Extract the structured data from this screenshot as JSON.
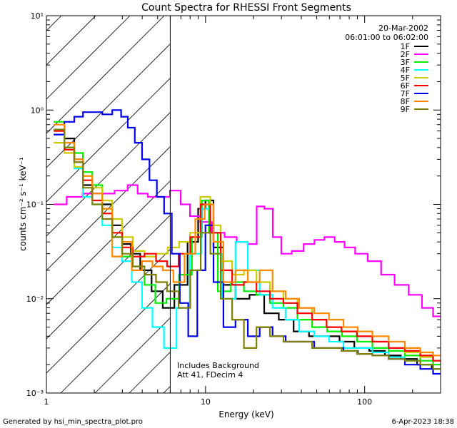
{
  "chart_data": {
    "type": "line",
    "title": "Count Spectra for RHESSI Front Segments",
    "xlabel": "Energy (keV)",
    "ylabel": "counts cm⁻² s⁻¹ keV⁻¹",
    "x_scale": "log",
    "y_scale": "log",
    "xlim": [
      1,
      300
    ],
    "ylim": [
      0.001,
      10
    ],
    "x_tick_labels": [
      {
        "value": 1,
        "label": "1"
      },
      {
        "value": 10,
        "label": "10"
      },
      {
        "value": 100,
        "label": "100"
      }
    ],
    "y_tick_labels": [
      {
        "value": 10,
        "label": "10¹"
      },
      {
        "value": 1,
        "label": "10⁰"
      },
      {
        "value": 0.1,
        "label": "10⁻¹"
      },
      {
        "value": 0.01,
        "label": "10⁻²"
      },
      {
        "value": 0.001,
        "label": "10⁻³"
      }
    ],
    "date": "20-Mar-2002",
    "time_range": "06:01:00 to 06:02:00",
    "annotation": [
      "Includes Background",
      "Att 41, FDecim 4"
    ],
    "hatched_region_xmax": 6,
    "legend_position": "top-right",
    "series": [
      {
        "name": "1F",
        "color": "#000000",
        "points": [
          [
            1.2,
            0.62
          ],
          [
            1.4,
            0.5
          ],
          [
            1.6,
            0.3
          ],
          [
            1.8,
            0.16
          ],
          [
            2.1,
            0.13
          ],
          [
            2.4,
            0.1
          ],
          [
            2.8,
            0.06
          ],
          [
            3.2,
            0.038
          ],
          [
            3.6,
            0.03
          ],
          [
            4.2,
            0.02
          ],
          [
            5,
            0.012
          ],
          [
            5.8,
            0.008
          ],
          [
            7,
            0.014
          ],
          [
            8.5,
            0.04
          ],
          [
            9.5,
            0.09
          ],
          [
            10.5,
            0.11
          ],
          [
            12,
            0.035
          ],
          [
            14,
            0.014
          ],
          [
            17,
            0.01
          ],
          [
            21,
            0.011
          ],
          [
            26,
            0.007
          ],
          [
            32,
            0.006
          ],
          [
            40,
            0.0045
          ],
          [
            50,
            0.004
          ],
          [
            62,
            0.004
          ],
          [
            78,
            0.0035
          ],
          [
            95,
            0.003
          ],
          [
            120,
            0.0028
          ],
          [
            150,
            0.0025
          ],
          [
            190,
            0.0023
          ],
          [
            240,
            0.002
          ],
          [
            290,
            0.0018
          ]
        ]
      },
      {
        "name": "2F",
        "color": "#ff00ff",
        "points": [
          [
            1.2,
            0.1
          ],
          [
            1.5,
            0.12
          ],
          [
            1.9,
            0.13
          ],
          [
            2.4,
            0.13
          ],
          [
            3,
            0.14
          ],
          [
            3.5,
            0.16
          ],
          [
            4,
            0.13
          ],
          [
            4.7,
            0.12
          ],
          [
            5.5,
            0.12
          ],
          [
            6.5,
            0.14
          ],
          [
            7.5,
            0.1
          ],
          [
            8.5,
            0.075
          ],
          [
            10,
            0.065
          ],
          [
            12,
            0.05
          ],
          [
            14.5,
            0.045
          ],
          [
            17,
            0.04
          ],
          [
            20,
            0.038
          ],
          [
            22,
            0.095
          ],
          [
            25,
            0.09
          ],
          [
            28,
            0.045
          ],
          [
            32,
            0.03
          ],
          [
            38,
            0.032
          ],
          [
            45,
            0.038
          ],
          [
            52,
            0.042
          ],
          [
            60,
            0.045
          ],
          [
            70,
            0.04
          ],
          [
            80,
            0.035
          ],
          [
            95,
            0.03
          ],
          [
            115,
            0.025
          ],
          [
            140,
            0.018
          ],
          [
            170,
            0.014
          ],
          [
            210,
            0.011
          ],
          [
            250,
            0.008
          ],
          [
            290,
            0.0065
          ]
        ]
      },
      {
        "name": "3F",
        "color": "#00ee00",
        "points": [
          [
            1.2,
            0.75
          ],
          [
            1.4,
            0.4
          ],
          [
            1.6,
            0.35
          ],
          [
            1.8,
            0.22
          ],
          [
            2.1,
            0.16
          ],
          [
            2.4,
            0.09
          ],
          [
            2.8,
            0.045
          ],
          [
            3.2,
            0.028
          ],
          [
            3.8,
            0.022
          ],
          [
            4.5,
            0.014
          ],
          [
            5.2,
            0.009
          ],
          [
            6.2,
            0.01
          ],
          [
            7.5,
            0.018
          ],
          [
            9,
            0.045
          ],
          [
            10,
            0.11
          ],
          [
            11,
            0.05
          ],
          [
            13,
            0.012
          ],
          [
            16,
            0.015
          ],
          [
            19,
            0.012
          ],
          [
            23,
            0.011
          ],
          [
            28,
            0.009
          ],
          [
            34,
            0.008
          ],
          [
            42,
            0.006
          ],
          [
            52,
            0.005
          ],
          [
            65,
            0.0045
          ],
          [
            80,
            0.004
          ],
          [
            100,
            0.0035
          ],
          [
            125,
            0.003
          ],
          [
            160,
            0.0028
          ],
          [
            200,
            0.0025
          ],
          [
            250,
            0.0022
          ],
          [
            290,
            0.002
          ]
        ]
      },
      {
        "name": "4F",
        "color": "#00ffff",
        "points": [
          [
            1.2,
            0.55
          ],
          [
            1.4,
            0.4
          ],
          [
            1.6,
            0.24
          ],
          [
            1.8,
            0.12
          ],
          [
            2.1,
            0.1
          ],
          [
            2.4,
            0.06
          ],
          [
            2.8,
            0.035
          ],
          [
            3.2,
            0.025
          ],
          [
            3.7,
            0.015
          ],
          [
            4.3,
            0.008
          ],
          [
            5,
            0.005
          ],
          [
            6,
            0.003
          ],
          [
            7.2,
            0.008
          ],
          [
            8.8,
            0.03
          ],
          [
            10,
            0.09
          ],
          [
            11.5,
            0.03
          ],
          [
            14,
            0.01
          ],
          [
            17,
            0.04
          ],
          [
            20,
            0.02
          ],
          [
            24,
            0.011
          ],
          [
            29,
            0.008
          ],
          [
            35,
            0.006
          ],
          [
            43,
            0.0045
          ],
          [
            54,
            0.004
          ],
          [
            66,
            0.0035
          ],
          [
            82,
            0.003
          ],
          [
            100,
            0.003
          ],
          [
            125,
            0.0027
          ],
          [
            160,
            0.0024
          ],
          [
            200,
            0.0022
          ],
          [
            250,
            0.002
          ],
          [
            290,
            0.0018
          ]
        ]
      },
      {
        "name": "5F",
        "color": "#cccc00",
        "points": [
          [
            1.2,
            0.45
          ],
          [
            1.4,
            0.35
          ],
          [
            1.6,
            0.25
          ],
          [
            1.8,
            0.2
          ],
          [
            2.1,
            0.15
          ],
          [
            2.4,
            0.11
          ],
          [
            2.8,
            0.07
          ],
          [
            3.2,
            0.045
          ],
          [
            3.8,
            0.032
          ],
          [
            4.5,
            0.028
          ],
          [
            5.3,
            0.03
          ],
          [
            6.3,
            0.035
          ],
          [
            7.4,
            0.04
          ],
          [
            8.6,
            0.05
          ],
          [
            10,
            0.12
          ],
          [
            11.5,
            0.06
          ],
          [
            13.5,
            0.025
          ],
          [
            16,
            0.018
          ],
          [
            19,
            0.02
          ],
          [
            23,
            0.015
          ],
          [
            28,
            0.012
          ],
          [
            34,
            0.01
          ],
          [
            42,
            0.008
          ],
          [
            52,
            0.006
          ],
          [
            64,
            0.005
          ],
          [
            80,
            0.0045
          ],
          [
            100,
            0.004
          ],
          [
            125,
            0.0035
          ],
          [
            160,
            0.003
          ],
          [
            200,
            0.0027
          ],
          [
            250,
            0.0024
          ],
          [
            290,
            0.0022
          ]
        ]
      },
      {
        "name": "6F",
        "color": "#ff0000",
        "points": [
          [
            1.2,
            0.6
          ],
          [
            1.4,
            0.38
          ],
          [
            1.6,
            0.28
          ],
          [
            1.8,
            0.18
          ],
          [
            2.1,
            0.11
          ],
          [
            2.4,
            0.08
          ],
          [
            2.8,
            0.05
          ],
          [
            3.2,
            0.035
          ],
          [
            3.8,
            0.028
          ],
          [
            4.5,
            0.03
          ],
          [
            5.3,
            0.025
          ],
          [
            6.2,
            0.022
          ],
          [
            7.4,
            0.03
          ],
          [
            8.7,
            0.045
          ],
          [
            10,
            0.1
          ],
          [
            11.5,
            0.05
          ],
          [
            13.5,
            0.02
          ],
          [
            16,
            0.014
          ],
          [
            19,
            0.015
          ],
          [
            23,
            0.012
          ],
          [
            28,
            0.01
          ],
          [
            34,
            0.009
          ],
          [
            42,
            0.007
          ],
          [
            52,
            0.006
          ],
          [
            64,
            0.005
          ],
          [
            80,
            0.0045
          ],
          [
            100,
            0.004
          ],
          [
            125,
            0.0035
          ],
          [
            160,
            0.003
          ],
          [
            200,
            0.0028
          ],
          [
            250,
            0.0025
          ],
          [
            290,
            0.0022
          ]
        ]
      },
      {
        "name": "7F",
        "color": "#0000ee",
        "points": [
          [
            1.2,
            0.55
          ],
          [
            1.4,
            0.75
          ],
          [
            1.6,
            0.85
          ],
          [
            1.8,
            0.95
          ],
          [
            2.1,
            0.95
          ],
          [
            2.4,
            0.9
          ],
          [
            2.8,
            1.0
          ],
          [
            3.1,
            0.85
          ],
          [
            3.4,
            0.65
          ],
          [
            3.8,
            0.45
          ],
          [
            4.2,
            0.3
          ],
          [
            4.7,
            0.18
          ],
          [
            5.2,
            0.12
          ],
          [
            5.8,
            0.08
          ],
          [
            6.5,
            0.03
          ],
          [
            7.3,
            0.009
          ],
          [
            8.3,
            0.004
          ],
          [
            9.5,
            0.02
          ],
          [
            10.5,
            0.06
          ],
          [
            12,
            0.015
          ],
          [
            14,
            0.005
          ],
          [
            17,
            0.006
          ],
          [
            20,
            0.004
          ],
          [
            24,
            0.005
          ],
          [
            29,
            0.004
          ],
          [
            35,
            0.0035
          ],
          [
            43,
            0.0035
          ],
          [
            54,
            0.003
          ],
          [
            66,
            0.003
          ],
          [
            82,
            0.0028
          ],
          [
            100,
            0.0026
          ],
          [
            125,
            0.0025
          ],
          [
            160,
            0.0023
          ],
          [
            200,
            0.002
          ],
          [
            250,
            0.0018
          ],
          [
            290,
            0.0016
          ]
        ]
      },
      {
        "name": "8F",
        "color": "#ff8800",
        "points": [
          [
            1.2,
            0.7
          ],
          [
            1.4,
            0.45
          ],
          [
            1.6,
            0.3
          ],
          [
            1.8,
            0.2
          ],
          [
            2.1,
            0.13
          ],
          [
            2.4,
            0.09
          ],
          [
            2.8,
            0.028
          ],
          [
            3.2,
            0.04
          ],
          [
            3.7,
            0.02
          ],
          [
            4.3,
            0.025
          ],
          [
            5,
            0.022
          ],
          [
            5.8,
            0.02
          ],
          [
            6.8,
            0.015
          ],
          [
            8,
            0.03
          ],
          [
            9.3,
            0.07
          ],
          [
            10.5,
            0.1
          ],
          [
            12,
            0.04
          ],
          [
            14,
            0.015
          ],
          [
            17,
            0.02
          ],
          [
            20,
            0.015
          ],
          [
            24,
            0.02
          ],
          [
            29,
            0.012
          ],
          [
            35,
            0.01
          ],
          [
            43,
            0.008
          ],
          [
            54,
            0.007
          ],
          [
            66,
            0.006
          ],
          [
            82,
            0.005
          ],
          [
            100,
            0.0045
          ],
          [
            125,
            0.004
          ],
          [
            160,
            0.0035
          ],
          [
            200,
            0.003
          ],
          [
            250,
            0.0027
          ],
          [
            290,
            0.0025
          ]
        ]
      },
      {
        "name": "9F",
        "color": "#808000",
        "points": [
          [
            1.2,
            0.62
          ],
          [
            1.4,
            0.4
          ],
          [
            1.6,
            0.28
          ],
          [
            1.8,
            0.15
          ],
          [
            2.1,
            0.1
          ],
          [
            2.4,
            0.07
          ],
          [
            2.8,
            0.045
          ],
          [
            3.2,
            0.03
          ],
          [
            3.8,
            0.022
          ],
          [
            4.5,
            0.018
          ],
          [
            5.3,
            0.015
          ],
          [
            6.2,
            0.012
          ],
          [
            7.4,
            0.008
          ],
          [
            8.7,
            0.02
          ],
          [
            10,
            0.05
          ],
          [
            11.5,
            0.03
          ],
          [
            13.5,
            0.01
          ],
          [
            16,
            0.006
          ],
          [
            19,
            0.003
          ],
          [
            23,
            0.005
          ],
          [
            28,
            0.004
          ],
          [
            34,
            0.0035
          ],
          [
            42,
            0.0035
          ],
          [
            52,
            0.003
          ],
          [
            64,
            0.003
          ],
          [
            80,
            0.0028
          ],
          [
            100,
            0.0026
          ],
          [
            125,
            0.0025
          ],
          [
            160,
            0.0023
          ],
          [
            200,
            0.0022
          ],
          [
            250,
            0.002
          ],
          [
            290,
            0.0018
          ]
        ]
      }
    ]
  },
  "footer": {
    "generated_by": "Generated by hsi_min_spectra_plot.pro",
    "timestamp": "6-Apr-2023 18:38"
  }
}
